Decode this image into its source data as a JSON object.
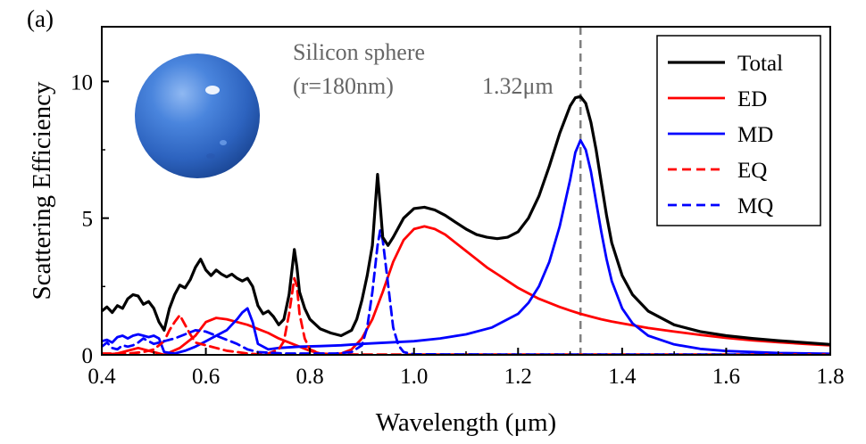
{
  "panel_label": "(a)",
  "colors": {
    "total": "#000000",
    "ed": "#ff0000",
    "md": "#0000ff",
    "eq": "#ff0000",
    "mq": "#0000ff",
    "marker_line": "#808080",
    "annotation_text": "#666666",
    "sphere": "#3a78d8"
  },
  "annotations": {
    "title_line1": "Silicon sphere",
    "title_line2": "(r=180nm)",
    "peak_label": "1.32μm"
  },
  "chart_data": {
    "type": "line",
    "xlabel": "Wavelength (μm)",
    "ylabel": "Scattering Efficiency",
    "xlim": [
      0.4,
      1.8
    ],
    "ylim": [
      0,
      12
    ],
    "xticks": [
      0.4,
      0.6,
      0.8,
      1.0,
      1.2,
      1.4,
      1.6,
      1.8
    ],
    "xtick_labels": [
      "0.4",
      "0.6",
      "0.8",
      "1.0",
      "1.2",
      "1.4",
      "1.6",
      "1.8"
    ],
    "yticks": [
      0,
      5,
      10
    ],
    "ytick_labels": [
      "0",
      "5",
      "10"
    ],
    "grid": false,
    "legend_position": "top-right",
    "vertical_marker_x": 1.32,
    "series": [
      {
        "name": "Total",
        "style": "solid",
        "color": "#000000",
        "points": [
          [
            0.4,
            1.6
          ],
          [
            0.41,
            1.75
          ],
          [
            0.42,
            1.55
          ],
          [
            0.43,
            1.8
          ],
          [
            0.44,
            1.7
          ],
          [
            0.45,
            2.05
          ],
          [
            0.46,
            2.2
          ],
          [
            0.47,
            2.15
          ],
          [
            0.48,
            1.85
          ],
          [
            0.49,
            1.95
          ],
          [
            0.5,
            1.7
          ],
          [
            0.51,
            1.2
          ],
          [
            0.52,
            0.9
          ],
          [
            0.53,
            1.7
          ],
          [
            0.54,
            2.2
          ],
          [
            0.55,
            2.55
          ],
          [
            0.56,
            2.45
          ],
          [
            0.57,
            2.75
          ],
          [
            0.58,
            3.2
          ],
          [
            0.59,
            3.5
          ],
          [
            0.6,
            3.1
          ],
          [
            0.61,
            2.9
          ],
          [
            0.62,
            3.1
          ],
          [
            0.63,
            2.95
          ],
          [
            0.64,
            2.85
          ],
          [
            0.65,
            2.95
          ],
          [
            0.66,
            2.8
          ],
          [
            0.67,
            2.7
          ],
          [
            0.68,
            2.8
          ],
          [
            0.69,
            2.5
          ],
          [
            0.7,
            1.8
          ],
          [
            0.71,
            1.5
          ],
          [
            0.72,
            1.6
          ],
          [
            0.73,
            1.4
          ],
          [
            0.74,
            1.1
          ],
          [
            0.75,
            1.3
          ],
          [
            0.76,
            2.2
          ],
          [
            0.77,
            3.85
          ],
          [
            0.775,
            3.2
          ],
          [
            0.78,
            2.3
          ],
          [
            0.79,
            1.7
          ],
          [
            0.8,
            1.3
          ],
          [
            0.82,
            0.95
          ],
          [
            0.84,
            0.8
          ],
          [
            0.86,
            0.7
          ],
          [
            0.88,
            0.9
          ],
          [
            0.89,
            1.3
          ],
          [
            0.9,
            2.0
          ],
          [
            0.91,
            2.9
          ],
          [
            0.92,
            4.0
          ],
          [
            0.93,
            6.6
          ],
          [
            0.935,
            5.5
          ],
          [
            0.94,
            4.3
          ],
          [
            0.95,
            4.0
          ],
          [
            0.96,
            4.3
          ],
          [
            0.98,
            5.0
          ],
          [
            1.0,
            5.35
          ],
          [
            1.02,
            5.4
          ],
          [
            1.04,
            5.3
          ],
          [
            1.06,
            5.1
          ],
          [
            1.08,
            4.85
          ],
          [
            1.1,
            4.6
          ],
          [
            1.12,
            4.4
          ],
          [
            1.14,
            4.3
          ],
          [
            1.16,
            4.25
          ],
          [
            1.18,
            4.3
          ],
          [
            1.2,
            4.5
          ],
          [
            1.22,
            5.0
          ],
          [
            1.24,
            5.8
          ],
          [
            1.26,
            6.9
          ],
          [
            1.28,
            8.1
          ],
          [
            1.3,
            9.1
          ],
          [
            1.31,
            9.4
          ],
          [
            1.32,
            9.45
          ],
          [
            1.33,
            9.2
          ],
          [
            1.34,
            8.5
          ],
          [
            1.35,
            7.5
          ],
          [
            1.36,
            6.3
          ],
          [
            1.37,
            5.1
          ],
          [
            1.38,
            4.1
          ],
          [
            1.4,
            2.9
          ],
          [
            1.42,
            2.2
          ],
          [
            1.45,
            1.6
          ],
          [
            1.5,
            1.1
          ],
          [
            1.55,
            0.85
          ],
          [
            1.6,
            0.7
          ],
          [
            1.65,
            0.6
          ],
          [
            1.7,
            0.52
          ],
          [
            1.75,
            0.45
          ],
          [
            1.8,
            0.38
          ]
        ]
      },
      {
        "name": "ED",
        "style": "solid",
        "color": "#ff0000",
        "points": [
          [
            0.4,
            0.0
          ],
          [
            0.43,
            0.05
          ],
          [
            0.45,
            0.15
          ],
          [
            0.47,
            0.25
          ],
          [
            0.5,
            0.1
          ],
          [
            0.52,
            0.0
          ],
          [
            0.55,
            0.25
          ],
          [
            0.58,
            0.7
          ],
          [
            0.6,
            1.2
          ],
          [
            0.62,
            1.35
          ],
          [
            0.64,
            1.3
          ],
          [
            0.66,
            1.2
          ],
          [
            0.68,
            1.1
          ],
          [
            0.7,
            0.95
          ],
          [
            0.72,
            0.8
          ],
          [
            0.74,
            0.6
          ],
          [
            0.76,
            0.45
          ],
          [
            0.78,
            0.3
          ],
          [
            0.8,
            0.15
          ],
          [
            0.82,
            0.05
          ],
          [
            0.84,
            0.02
          ],
          [
            0.86,
            0.05
          ],
          [
            0.88,
            0.2
          ],
          [
            0.9,
            0.6
          ],
          [
            0.92,
            1.3
          ],
          [
            0.94,
            2.3
          ],
          [
            0.96,
            3.4
          ],
          [
            0.98,
            4.2
          ],
          [
            1.0,
            4.6
          ],
          [
            1.02,
            4.7
          ],
          [
            1.04,
            4.6
          ],
          [
            1.06,
            4.4
          ],
          [
            1.08,
            4.1
          ],
          [
            1.1,
            3.8
          ],
          [
            1.12,
            3.5
          ],
          [
            1.14,
            3.2
          ],
          [
            1.16,
            2.95
          ],
          [
            1.18,
            2.7
          ],
          [
            1.2,
            2.45
          ],
          [
            1.22,
            2.25
          ],
          [
            1.24,
            2.05
          ],
          [
            1.26,
            1.9
          ],
          [
            1.28,
            1.75
          ],
          [
            1.3,
            1.62
          ],
          [
            1.32,
            1.5
          ],
          [
            1.34,
            1.4
          ],
          [
            1.36,
            1.3
          ],
          [
            1.38,
            1.22
          ],
          [
            1.4,
            1.15
          ],
          [
            1.45,
            0.98
          ],
          [
            1.5,
            0.85
          ],
          [
            1.55,
            0.73
          ],
          [
            1.6,
            0.62
          ],
          [
            1.65,
            0.53
          ],
          [
            1.7,
            0.46
          ],
          [
            1.75,
            0.4
          ],
          [
            1.8,
            0.35
          ]
        ]
      },
      {
        "name": "MD",
        "style": "solid",
        "color": "#0000ff",
        "points": [
          [
            0.4,
            0.5
          ],
          [
            0.41,
            0.55
          ],
          [
            0.42,
            0.45
          ],
          [
            0.43,
            0.65
          ],
          [
            0.44,
            0.7
          ],
          [
            0.45,
            0.6
          ],
          [
            0.46,
            0.7
          ],
          [
            0.47,
            0.75
          ],
          [
            0.48,
            0.7
          ],
          [
            0.49,
            0.65
          ],
          [
            0.5,
            0.7
          ],
          [
            0.51,
            0.6
          ],
          [
            0.52,
            0.1
          ],
          [
            0.54,
            0.05
          ],
          [
            0.56,
            0.15
          ],
          [
            0.58,
            0.3
          ],
          [
            0.6,
            0.5
          ],
          [
            0.62,
            0.7
          ],
          [
            0.64,
            0.9
          ],
          [
            0.66,
            1.3
          ],
          [
            0.67,
            1.55
          ],
          [
            0.68,
            1.7
          ],
          [
            0.69,
            1.2
          ],
          [
            0.7,
            0.4
          ],
          [
            0.72,
            0.2
          ],
          [
            0.74,
            0.25
          ],
          [
            0.78,
            0.3
          ],
          [
            0.82,
            0.32
          ],
          [
            0.86,
            0.35
          ],
          [
            0.9,
            0.4
          ],
          [
            0.95,
            0.45
          ],
          [
            1.0,
            0.5
          ],
          [
            1.05,
            0.6
          ],
          [
            1.1,
            0.75
          ],
          [
            1.15,
            1.0
          ],
          [
            1.2,
            1.5
          ],
          [
            1.22,
            1.9
          ],
          [
            1.24,
            2.5
          ],
          [
            1.26,
            3.4
          ],
          [
            1.28,
            4.7
          ],
          [
            1.3,
            6.4
          ],
          [
            1.31,
            7.4
          ],
          [
            1.32,
            7.85
          ],
          [
            1.33,
            7.5
          ],
          [
            1.34,
            6.7
          ],
          [
            1.35,
            5.6
          ],
          [
            1.36,
            4.5
          ],
          [
            1.37,
            3.5
          ],
          [
            1.38,
            2.7
          ],
          [
            1.4,
            1.7
          ],
          [
            1.42,
            1.15
          ],
          [
            1.45,
            0.7
          ],
          [
            1.5,
            0.38
          ],
          [
            1.55,
            0.22
          ],
          [
            1.6,
            0.14
          ],
          [
            1.7,
            0.07
          ],
          [
            1.8,
            0.04
          ]
        ]
      },
      {
        "name": "EQ",
        "style": "dashed",
        "color": "#ff0000",
        "points": [
          [
            0.4,
            0.05
          ],
          [
            0.45,
            0.05
          ],
          [
            0.48,
            0.1
          ],
          [
            0.5,
            0.2
          ],
          [
            0.52,
            0.5
          ],
          [
            0.53,
            0.9
          ],
          [
            0.54,
            1.2
          ],
          [
            0.55,
            1.45
          ],
          [
            0.56,
            1.1
          ],
          [
            0.57,
            0.75
          ],
          [
            0.58,
            0.45
          ],
          [
            0.6,
            0.35
          ],
          [
            0.62,
            0.25
          ],
          [
            0.64,
            0.15
          ],
          [
            0.66,
            0.1
          ],
          [
            0.68,
            0.05
          ],
          [
            0.7,
            0.02
          ],
          [
            0.72,
            0.05
          ],
          [
            0.74,
            0.2
          ],
          [
            0.75,
            0.5
          ],
          [
            0.76,
            1.5
          ],
          [
            0.77,
            2.8
          ],
          [
            0.775,
            2.5
          ],
          [
            0.78,
            1.5
          ],
          [
            0.79,
            0.6
          ],
          [
            0.8,
            0.2
          ],
          [
            0.82,
            0.05
          ],
          [
            0.85,
            0.02
          ],
          [
            0.9,
            0.01
          ],
          [
            1.0,
            0.01
          ],
          [
            1.2,
            0.01
          ],
          [
            1.4,
            0.01
          ],
          [
            1.6,
            0.01
          ],
          [
            1.8,
            0.01
          ]
        ]
      },
      {
        "name": "MQ",
        "style": "dashed",
        "color": "#0000ff",
        "points": [
          [
            0.4,
            0.3
          ],
          [
            0.41,
            0.45
          ],
          [
            0.42,
            0.25
          ],
          [
            0.43,
            0.2
          ],
          [
            0.44,
            0.35
          ],
          [
            0.45,
            0.3
          ],
          [
            0.46,
            0.35
          ],
          [
            0.47,
            0.45
          ],
          [
            0.48,
            0.6
          ],
          [
            0.49,
            0.5
          ],
          [
            0.5,
            0.4
          ],
          [
            0.52,
            0.5
          ],
          [
            0.54,
            0.6
          ],
          [
            0.56,
            0.75
          ],
          [
            0.58,
            0.9
          ],
          [
            0.6,
            0.85
          ],
          [
            0.62,
            0.7
          ],
          [
            0.64,
            0.55
          ],
          [
            0.66,
            0.4
          ],
          [
            0.68,
            0.2
          ],
          [
            0.7,
            0.1
          ],
          [
            0.75,
            0.05
          ],
          [
            0.8,
            0.05
          ],
          [
            0.85,
            0.05
          ],
          [
            0.88,
            0.1
          ],
          [
            0.9,
            0.35
          ],
          [
            0.91,
            1.0
          ],
          [
            0.92,
            2.3
          ],
          [
            0.93,
            4.0
          ],
          [
            0.935,
            4.55
          ],
          [
            0.94,
            4.2
          ],
          [
            0.95,
            2.6
          ],
          [
            0.96,
            1.0
          ],
          [
            0.97,
            0.35
          ],
          [
            0.98,
            0.1
          ],
          [
            1.0,
            0.02
          ],
          [
            1.2,
            0.01
          ],
          [
            1.4,
            0.01
          ],
          [
            1.6,
            0.01
          ],
          [
            1.8,
            0.01
          ]
        ]
      }
    ]
  }
}
